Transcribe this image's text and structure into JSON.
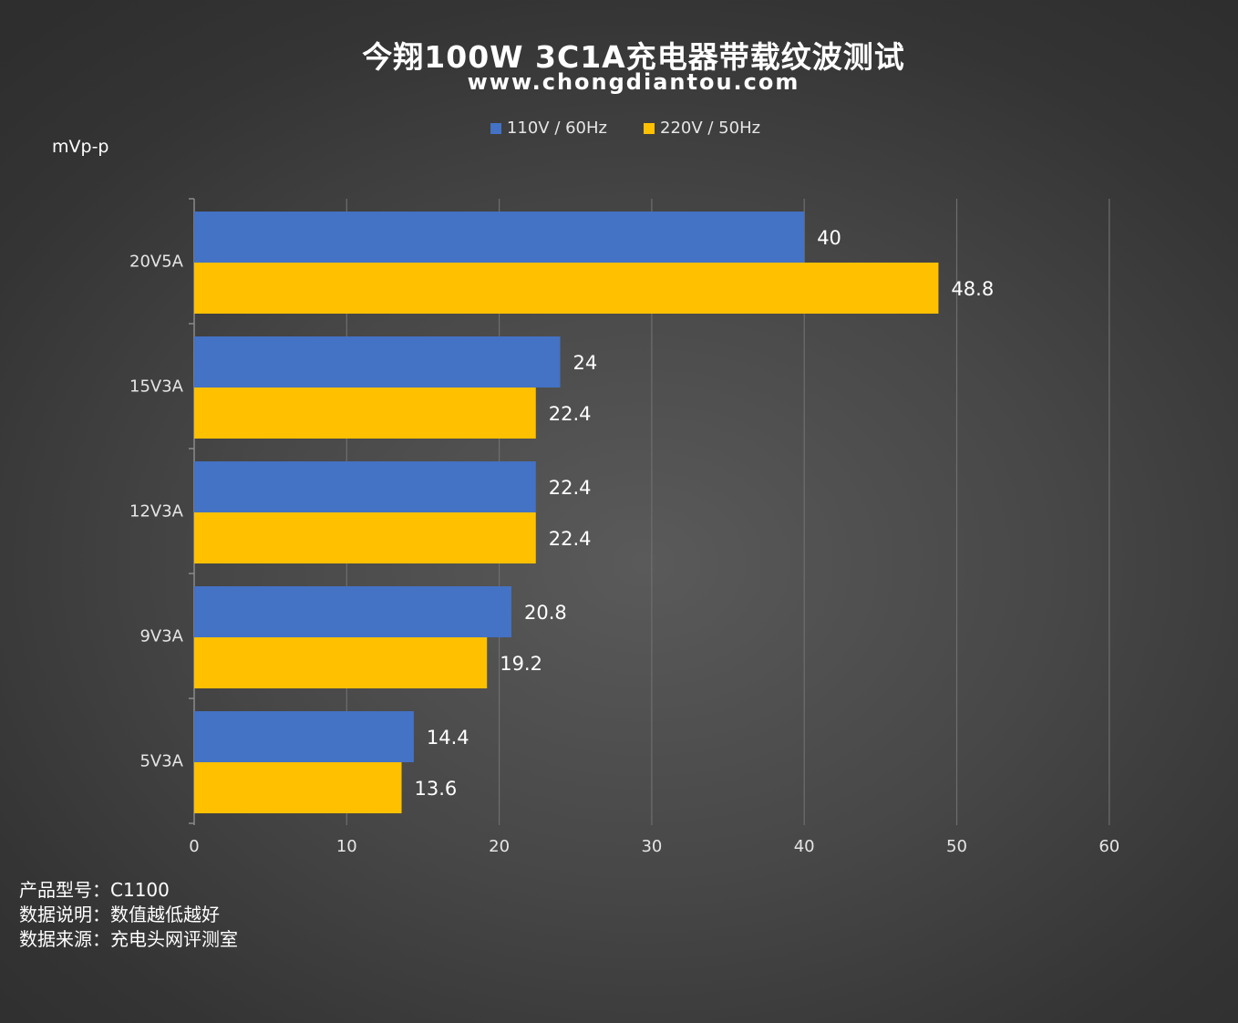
{
  "title": "今翔100W 3C1A充电器带载纹波测试",
  "subtitle": "www.chongdiantou.com",
  "unit_label": "mVp-p",
  "notes": [
    "产品型号：C1100",
    "数据说明：数值越低越好",
    "数据来源：充电头网评测室"
  ],
  "chart_data": {
    "type": "bar",
    "orientation": "horizontal",
    "title": "今翔100W 3C1A充电器带载纹波测试",
    "subtitle": "www.chongdiantou.com",
    "ylabel": "mVp-p",
    "xlabel": "",
    "categories": [
      "20V5A",
      "15V3A",
      "12V3A",
      "9V3A",
      "5V3A"
    ],
    "series": [
      {
        "name": "110V / 60Hz",
        "color": "#4472c4",
        "values": [
          40,
          24,
          22.4,
          20.8,
          14.4
        ]
      },
      {
        "name": "220V / 50Hz",
        "color": "#ffc000",
        "values": [
          48.8,
          22.4,
          22.4,
          19.2,
          13.6
        ]
      }
    ],
    "xlim": [
      0,
      60
    ],
    "ticks": [
      0,
      10,
      20,
      30,
      40,
      50,
      60
    ],
    "grid": true,
    "legend_position": "top-center"
  }
}
